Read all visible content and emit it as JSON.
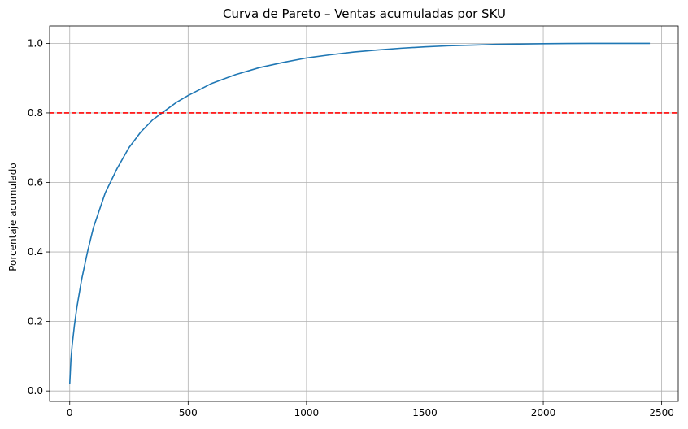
{
  "chart_data": {
    "type": "line",
    "title": "Curva de Pareto – Ventas acumuladas por SKU",
    "xlabel": "",
    "ylabel": "Porcentaje acumulado",
    "xlim": [
      -85,
      2570
    ],
    "ylim": [
      -0.03,
      1.05
    ],
    "xticks": [
      0,
      500,
      1000,
      1500,
      2000,
      2500
    ],
    "yticks": [
      0.0,
      0.2,
      0.4,
      0.6,
      0.8,
      1.0
    ],
    "xtick_labels": [
      "0",
      "500",
      "1000",
      "1500",
      "2000",
      "2500"
    ],
    "ytick_labels": [
      "0.0",
      "0.2",
      "0.4",
      "0.6",
      "0.8",
      "1.0"
    ],
    "grid": true,
    "series": [
      {
        "color": "#1f77b4",
        "x": [
          0,
          5,
          10,
          20,
          30,
          50,
          75,
          100,
          150,
          200,
          250,
          300,
          350,
          400,
          450,
          500,
          600,
          700,
          800,
          900,
          1000,
          1100,
          1200,
          1300,
          1400,
          1500,
          1600,
          1700,
          1800,
          1900,
          2000,
          2100,
          2200,
          2300,
          2400,
          2450
        ],
        "y": [
          0.02,
          0.09,
          0.13,
          0.19,
          0.24,
          0.32,
          0.4,
          0.47,
          0.57,
          0.64,
          0.7,
          0.745,
          0.78,
          0.805,
          0.83,
          0.85,
          0.885,
          0.91,
          0.93,
          0.945,
          0.958,
          0.967,
          0.975,
          0.981,
          0.986,
          0.99,
          0.993,
          0.995,
          0.997,
          0.998,
          0.999,
          0.9995,
          0.9998,
          0.9999,
          1.0,
          1.0
        ]
      }
    ],
    "reference_lines": [
      {
        "orientation": "horizontal",
        "y": 0.8,
        "color": "#ff0000",
        "style": "dashed"
      }
    ]
  }
}
